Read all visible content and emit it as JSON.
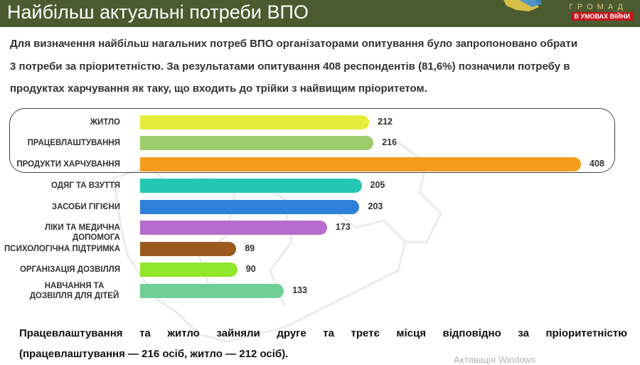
{
  "header": {
    "title": "Найбільш актуальні потреби ВПО",
    "logo_word": "ГРОМАД",
    "logo_badge": "В УМОВАХ ВІЙНИ"
  },
  "intro": {
    "line1": "Для визначення найбільш нагальних потреб ВПО організаторами опитування було запропоновано обрати",
    "line2": "3 потреби за пріоритетністю. За результатами опитування 408 респондентів (81,6%) позначили потребу в",
    "line3": "продуктах харчування як таку, що входить до трійки з найвищим пріоритетом."
  },
  "chart_data": {
    "type": "bar",
    "orientation": "horizontal",
    "categories": [
      "ЖИТЛО",
      "ПРАЦЕВЛАШТУВАННЯ",
      "ПРОДУКТИ ХАРЧУВАННЯ",
      "ОДЯГ ТА ВЗУТТЯ",
      "ЗАСОБИ ГІГІЄНИ",
      "ЛІКИ ТА МЕДИЧНА ДОПОМОГА",
      "ПСИХОЛОГІЧНА ПІДТРИМКА",
      "ОРГАНІЗАЦІЯ ДОЗВІЛЛЯ",
      "НАВЧАННЯ ТА ДОЗВІЛЛЯ ДЛЯ ДІТЕЙ"
    ],
    "values": [
      212,
      216,
      408,
      205,
      203,
      173,
      89,
      90,
      133
    ],
    "colors": [
      "#e6ec3c",
      "#9dcc6a",
      "#f39c1e",
      "#26c6b4",
      "#2f80d8",
      "#b66ccc",
      "#9c5a1f",
      "#8fe62b",
      "#6fcf97"
    ],
    "highlighted": [
      "ЖИТЛО",
      "ПРАЦЕВЛАШТУВАННЯ",
      "ПРОДУКТИ ХАРЧУВАННЯ"
    ],
    "xlim": [
      0,
      408
    ],
    "grid": false
  },
  "conclusion": {
    "line1": "Працевлаштування та житло зайняли друге та третє місця відповідно за пріоритетністю",
    "line2": "(працевлаштування — 216 осіб, житло — 212 осіб)."
  },
  "overlay": {
    "activation": "Активація Windows"
  }
}
